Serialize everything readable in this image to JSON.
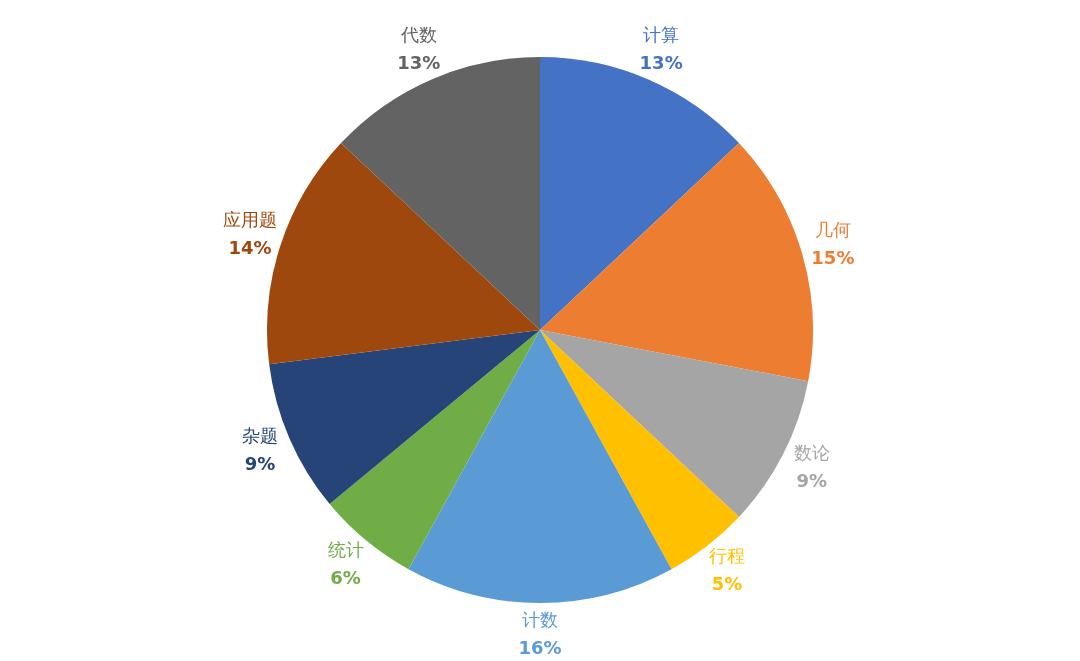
{
  "chart_data": {
    "type": "pie",
    "categories": [
      "计算",
      "几何",
      "数论",
      "行程",
      "计数",
      "统计",
      "杂题",
      "应用题",
      "代数"
    ],
    "values": [
      13,
      15,
      9,
      5,
      16,
      6,
      9,
      14,
      13
    ],
    "colors": [
      "#4472c4",
      "#ed7d31",
      "#a5a5a5",
      "#ffc000",
      "#5b9bd5",
      "#70ad47",
      "#264478",
      "#9e480e",
      "#636363"
    ],
    "value_labels": [
      "13%",
      "15%",
      "9%",
      "5%",
      "16%",
      "6%",
      "9%",
      "14%",
      "13%"
    ],
    "legend": false
  }
}
